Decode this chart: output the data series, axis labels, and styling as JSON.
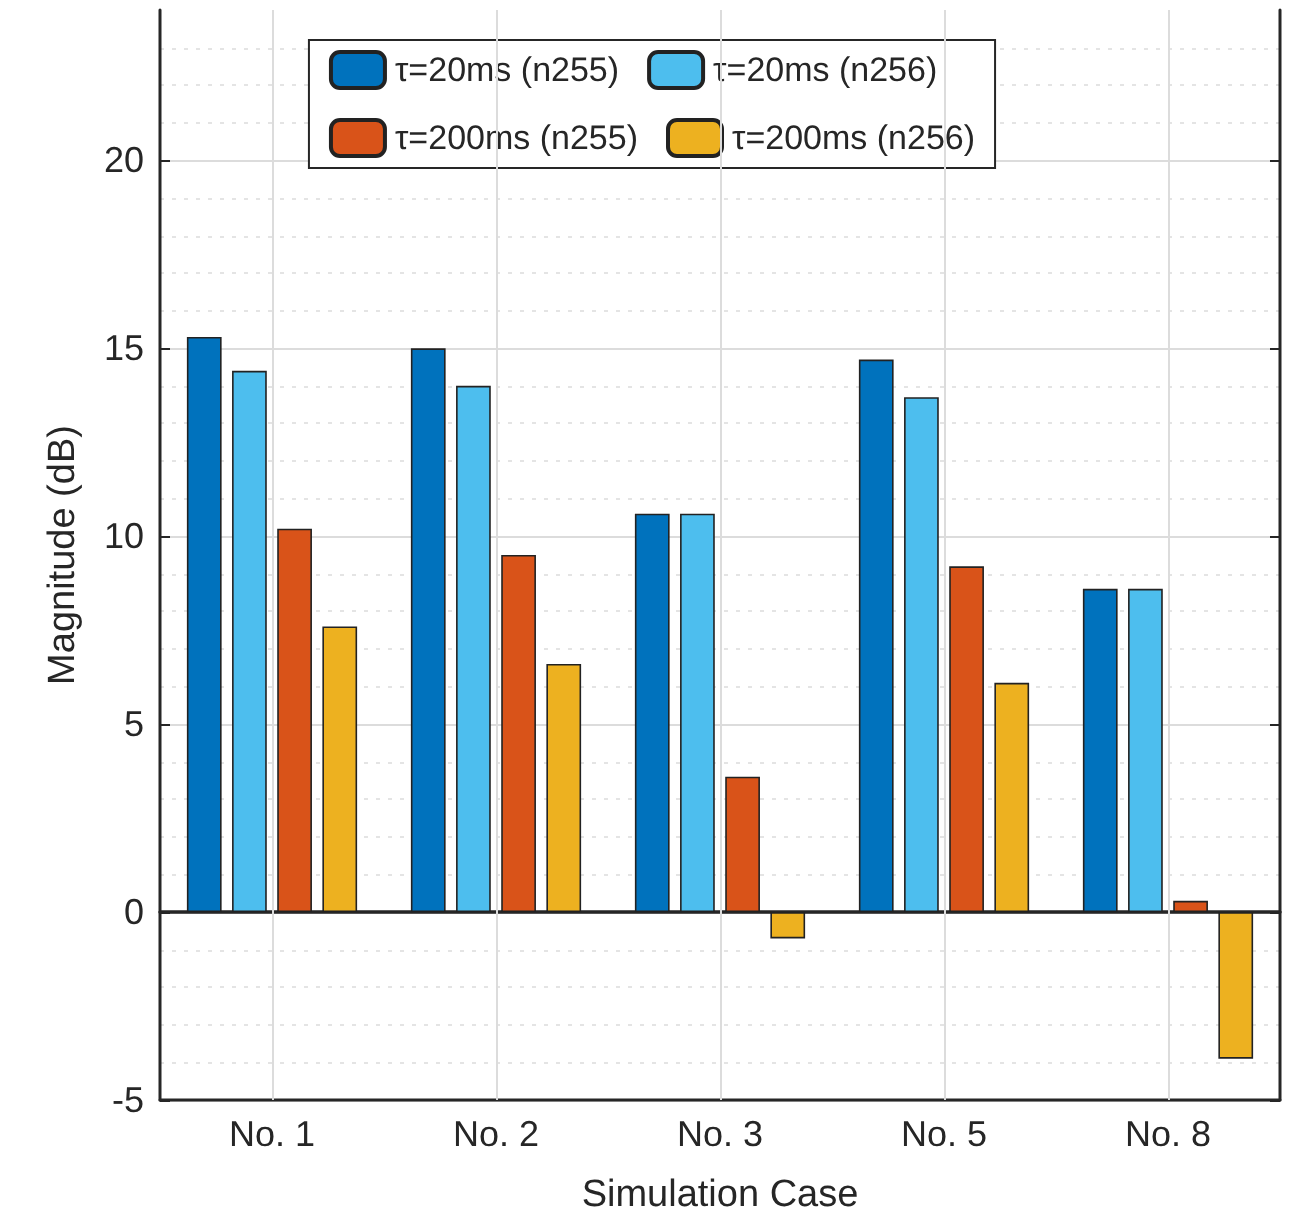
{
  "chart_data": {
    "type": "bar",
    "xlabel": "Simulation Case",
    "ylabel": "Magnitude (dB)",
    "categories": [
      "No. 1",
      "No. 2",
      "No. 3",
      "No. 5",
      "No. 8"
    ],
    "series": [
      {
        "name": "τ=20ms (n255)",
        "color": "#0072bd",
        "values": [
          15.3,
          15.0,
          10.6,
          14.7,
          8.6
        ]
      },
      {
        "name": "τ=20ms (n256)",
        "color": "#4dbeee",
        "values": [
          14.4,
          14.0,
          10.6,
          13.7,
          8.6
        ]
      },
      {
        "name": "τ=200ms (n255)",
        "color": "#d95319",
        "values": [
          10.2,
          9.5,
          3.6,
          9.2,
          0.3
        ]
      },
      {
        "name": "τ=200ms (n256)",
        "color": "#edb120",
        "values": [
          7.6,
          6.6,
          -0.7,
          6.1,
          -3.9
        ]
      }
    ],
    "ylim": [
      -5,
      24
    ],
    "yticks": [
      -5,
      0,
      5,
      10,
      15,
      20
    ],
    "grid": true,
    "legend": "top"
  }
}
